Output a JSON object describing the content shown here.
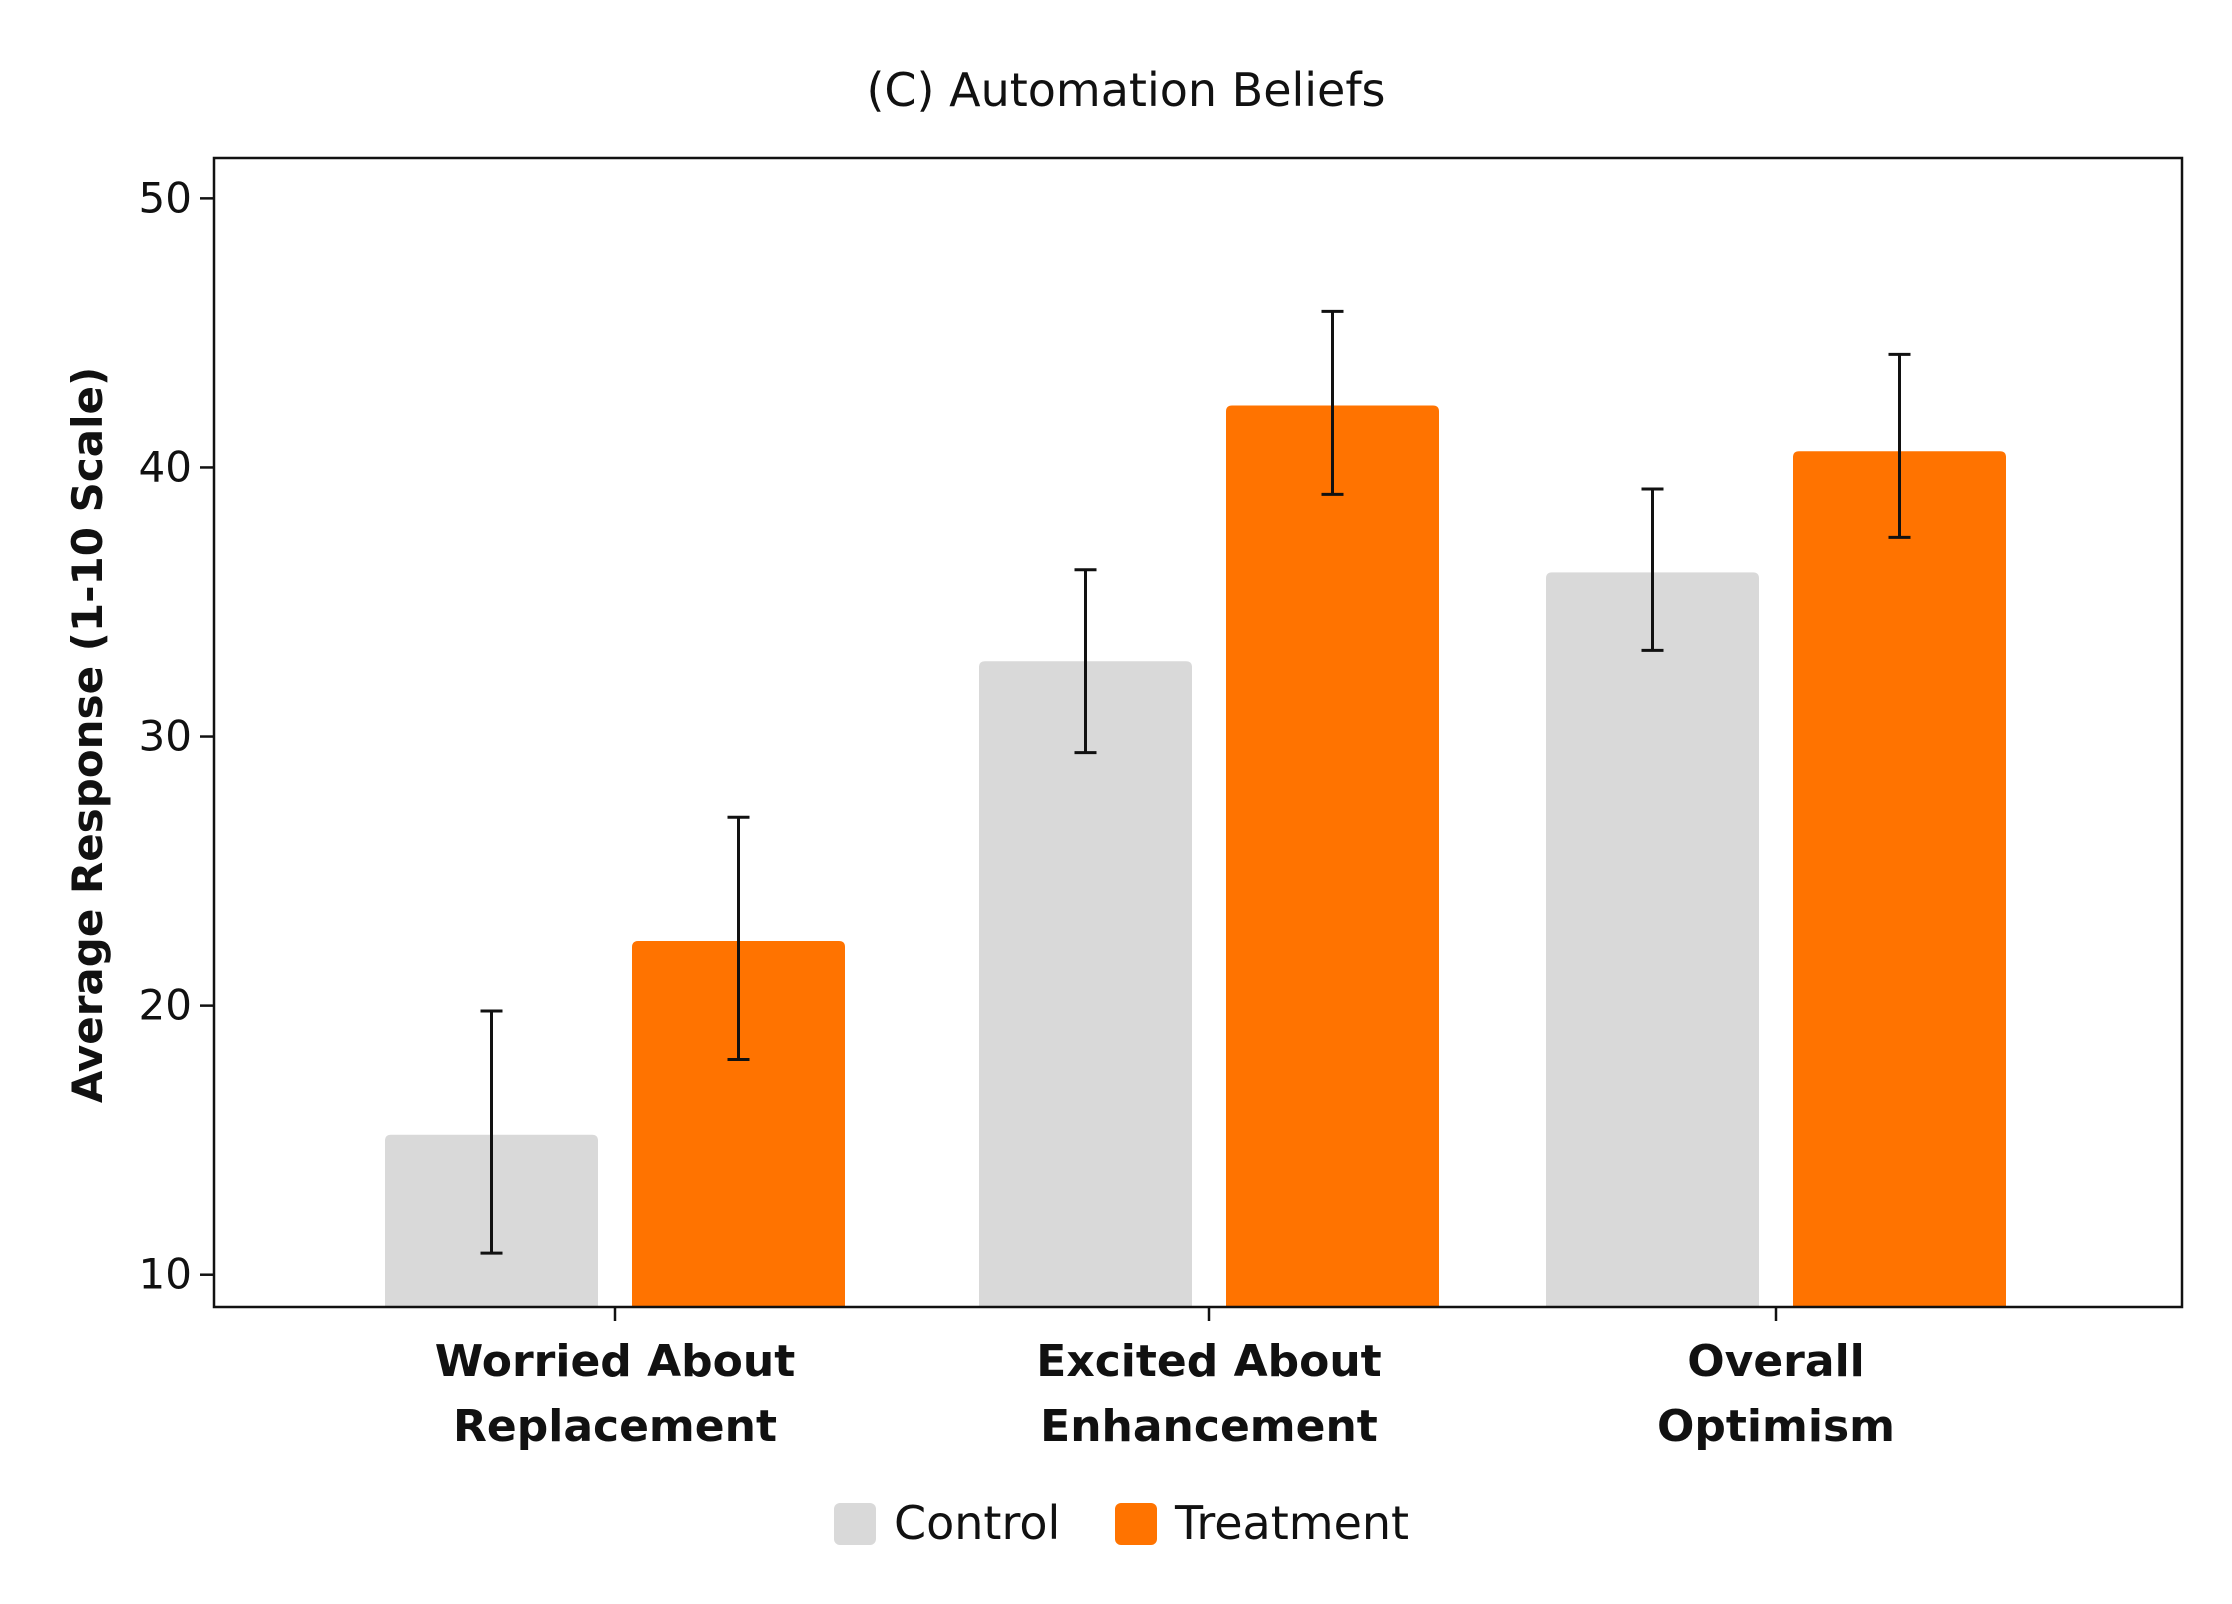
{
  "chart_data": {
    "type": "bar",
    "title": "(C) Automation Beliefs",
    "xlabel": "",
    "ylabel": "Average Response (1-10 Scale)",
    "ylim": [
      8.8,
      51.5
    ],
    "yticks": [
      10,
      20,
      30,
      40,
      50
    ],
    "categories": [
      [
        "Worried About",
        "Replacement"
      ],
      [
        "Excited About",
        "Enhancement"
      ],
      [
        "Overall",
        "Optimism"
      ]
    ],
    "series": [
      {
        "name": "Control",
        "color": "#d9d9d9",
        "values": [
          15.2,
          32.8,
          36.1
        ],
        "error_low": [
          10.8,
          29.4,
          33.2
        ],
        "error_high": [
          19.8,
          36.2,
          39.2
        ]
      },
      {
        "name": "Treatment",
        "color": "#ff7300",
        "values": [
          22.4,
          42.3,
          40.6
        ],
        "error_low": [
          18.0,
          39.0,
          37.4
        ],
        "error_high": [
          27.0,
          45.8,
          44.2
        ]
      }
    ],
    "grid": false,
    "legend_position": "bottom-center"
  }
}
